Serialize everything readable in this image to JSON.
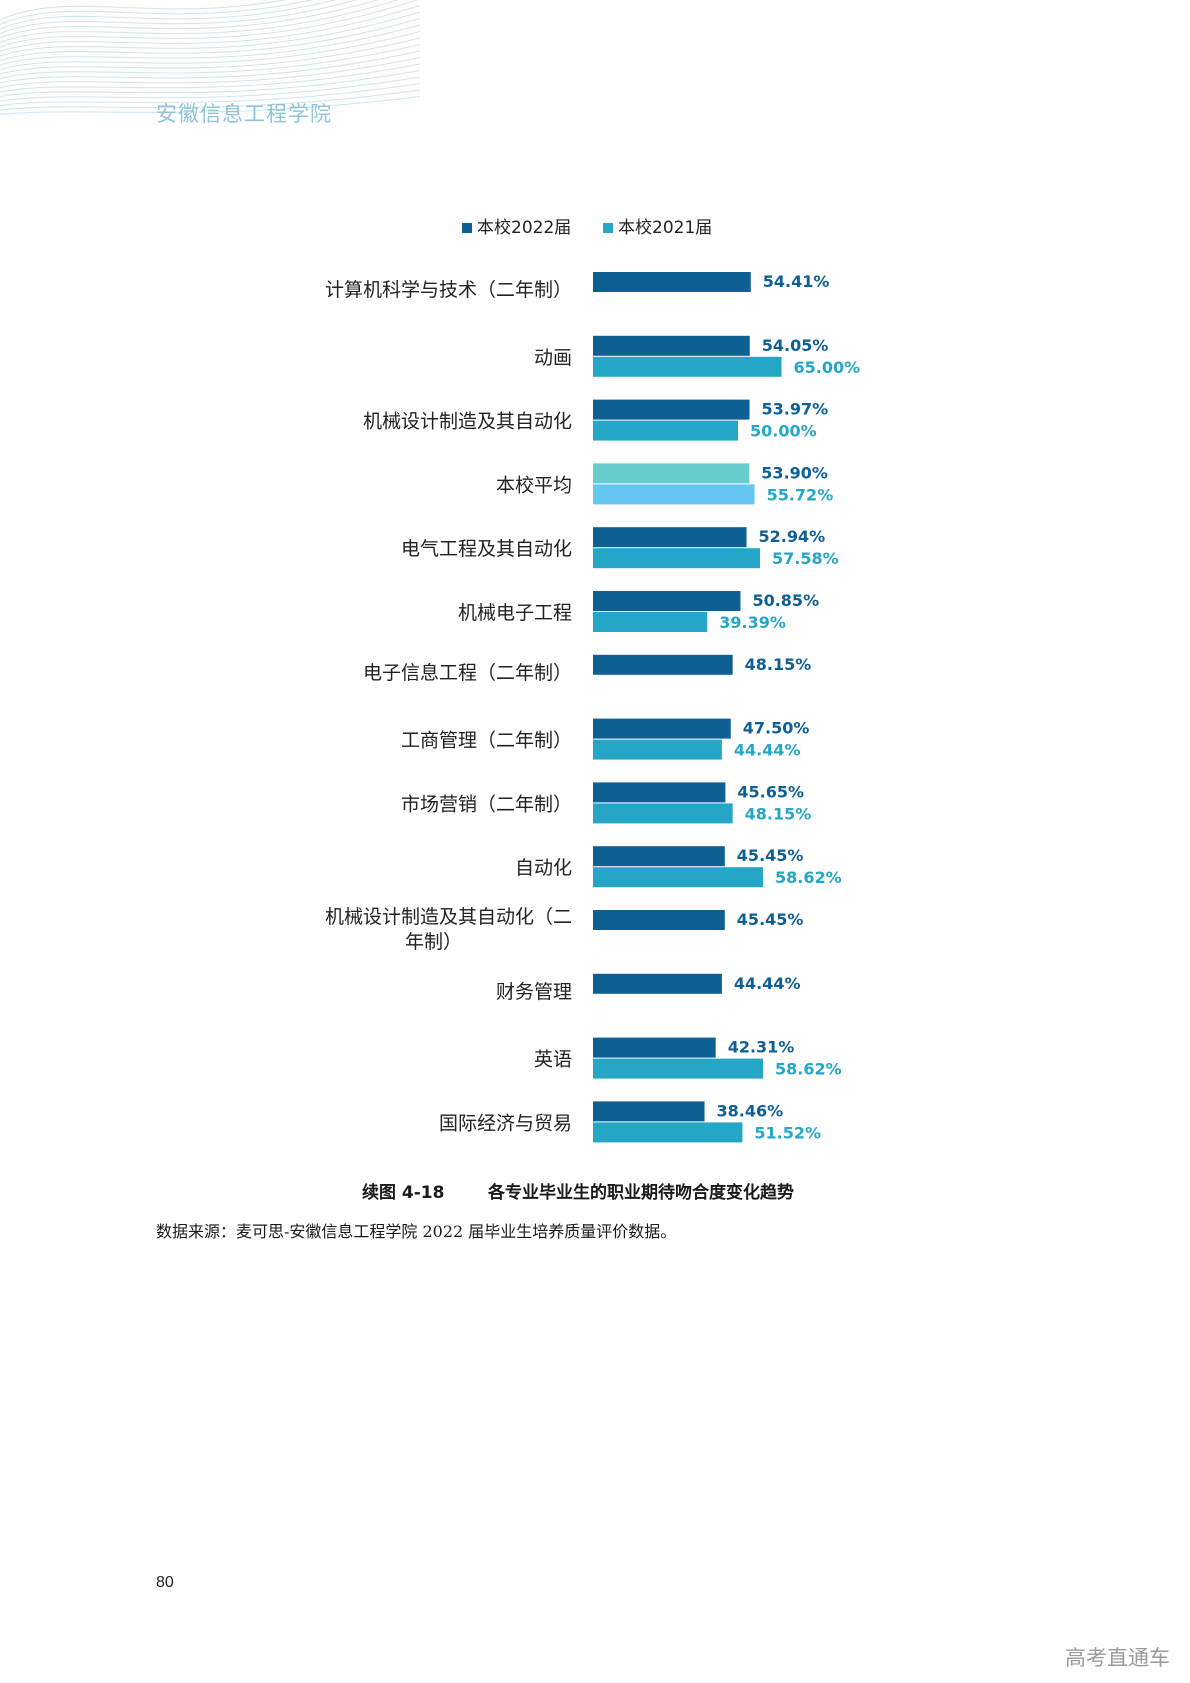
{
  "page": {
    "school_name": "安徽信息工程学院",
    "caption_number": "续图 4-18",
    "caption_title": "各专业毕业生的职业期待吻合度变化趋势",
    "source": "数据来源：麦可思-安徽信息工程学院 2022 届毕业生培养质量评价数据。",
    "page_number": "80",
    "watermark": "高考直通车"
  },
  "chart_data": {
    "type": "bar",
    "orientation": "horizontal",
    "categories": [
      "计算机科学与技术（二年制）",
      "动画",
      "机械设计制造及其自动化",
      "本校平均",
      "电气工程及其自动化",
      "机械电子工程",
      "电子信息工程（二年制）",
      "工商管理（二年制）",
      "市场营销（二年制）",
      "自动化",
      "机械设计制造及其自动化（二年制）",
      "财务管理",
      "英语",
      "国际经济与贸易"
    ],
    "series": [
      {
        "name": "本校2022届",
        "color": "#0e5f94",
        "highlight_color": "#66cccc",
        "values": [
          54.41,
          54.05,
          53.97,
          53.9,
          52.94,
          50.85,
          48.15,
          47.5,
          45.65,
          45.45,
          45.45,
          44.44,
          42.31,
          38.46
        ],
        "labels": [
          "54.41%",
          "54.05%",
          "53.97%",
          "53.90%",
          "52.94%",
          "50.85%",
          "48.15%",
          "47.50%",
          "45.65%",
          "45.45%",
          "45.45%",
          "44.44%",
          "42.31%",
          "38.46%"
        ]
      },
      {
        "name": "本校2021届",
        "color": "#26a6c6",
        "highlight_color": "#66c6f2",
        "values": [
          null,
          65.0,
          50.0,
          55.72,
          57.58,
          39.39,
          null,
          44.44,
          48.15,
          58.62,
          null,
          null,
          58.62,
          51.52
        ],
        "labels": [
          null,
          "65.00%",
          "50.00%",
          "55.72%",
          "57.58%",
          "39.39%",
          null,
          "44.44%",
          "48.15%",
          "58.62%",
          null,
          null,
          "58.62%",
          "51.52%"
        ]
      }
    ],
    "highlight_category": "本校平均",
    "x_range": [
      0,
      65
    ],
    "grid": false,
    "legend_position": "top"
  }
}
